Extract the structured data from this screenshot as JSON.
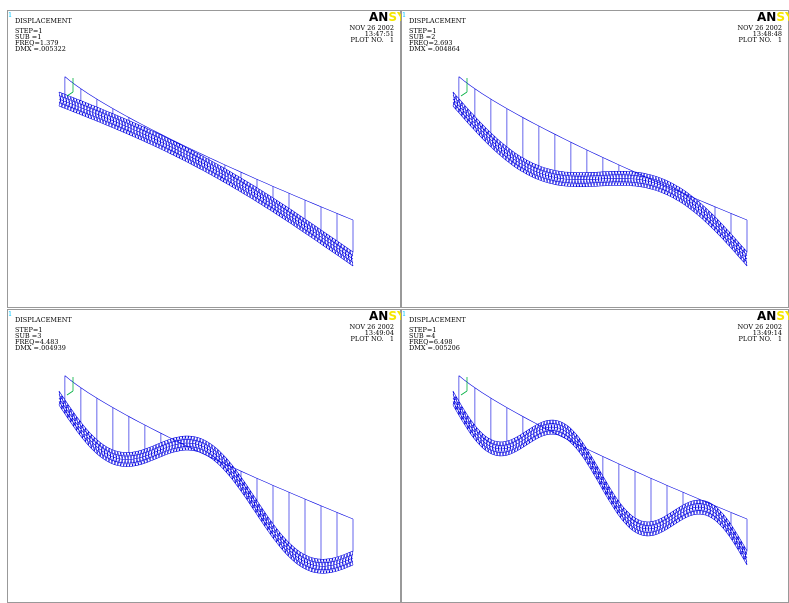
{
  "panels": [
    {
      "number": "1",
      "title": "DISPLACEMENT",
      "step": "STEP=1",
      "sub": "SUB =1",
      "freq": "FREQ=1.379",
      "dmx": "DMX =.005322",
      "date": "NOV 26 2002",
      "time": "13:47:51",
      "plot": "PLOT NO.   1",
      "logo": "AN",
      "logo_accent": "SYS"
    },
    {
      "number": "1",
      "title": "DISPLACEMENT",
      "step": "STEP=1",
      "sub": "SUB =2",
      "freq": "FREQ=2.693",
      "dmx": "DMX =.004864",
      "date": "NOV 26 2002",
      "time": "13:48:48",
      "plot": "PLOT NO.   1",
      "logo": "AN",
      "logo_accent": "SYS"
    },
    {
      "number": "1",
      "title": "DISPLACEMENT",
      "step": "STEP=1",
      "sub": "SUB =3",
      "freq": "FREQ=4.483",
      "dmx": "DMX =.004939",
      "date": "NOV 26 2002",
      "time": "13:49:04",
      "plot": "PLOT NO.   1",
      "logo": "AN",
      "logo_accent": "SYS"
    },
    {
      "number": "1",
      "title": "DISPLACEMENT",
      "step": "STEP=1",
      "sub": "SUB =4",
      "freq": "FREQ=6.498",
      "dmx": "DMX =.005206",
      "date": "NOV 26 2002",
      "time": "13:49:14",
      "plot": "PLOT NO.   1",
      "logo": "AN",
      "logo_accent": "SYS"
    }
  ]
}
